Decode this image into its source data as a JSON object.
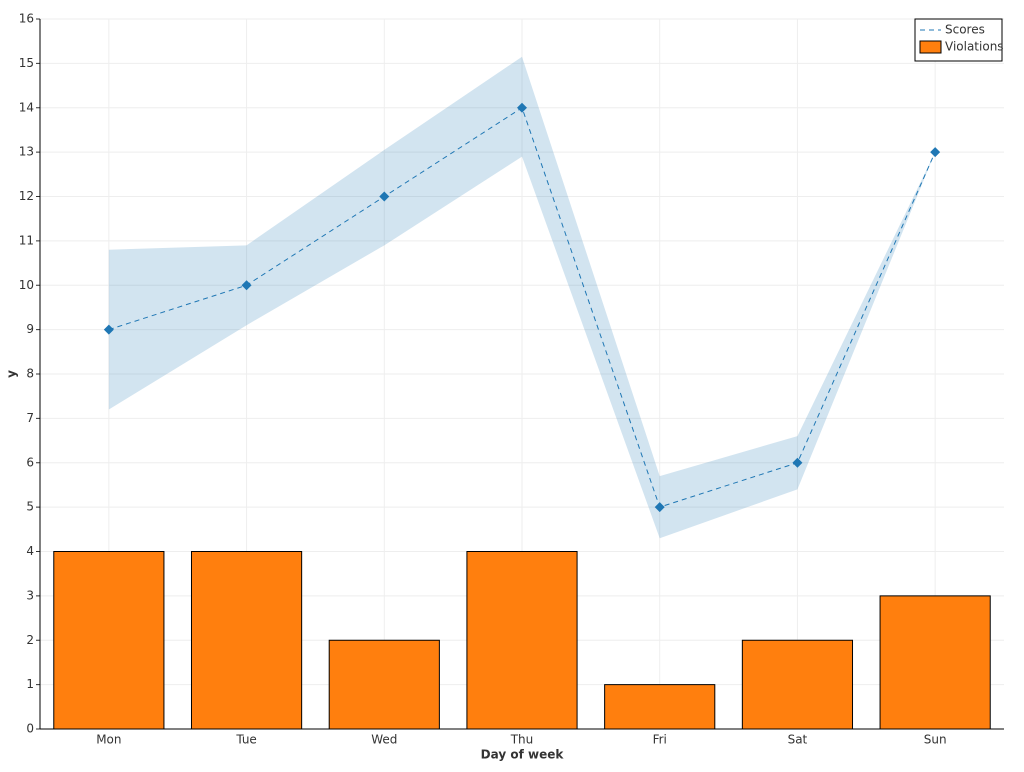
{
  "chart_data": {
    "type": "combo",
    "x_label": "Day of week",
    "y_label": "y",
    "categories": [
      "Mon",
      "Tue",
      "Wed",
      "Thu",
      "Fri",
      "Sat",
      "Sun"
    ],
    "series": [
      {
        "name": "Scores",
        "type": "line",
        "color": "#1f77b4",
        "values": [
          9,
          10,
          12,
          14,
          5,
          6,
          13
        ],
        "lower": [
          7.2,
          9.1,
          10.9,
          12.9,
          4.3,
          5.4,
          13
        ],
        "upper": [
          10.8,
          10.9,
          13.05,
          15.15,
          5.7,
          6.6,
          13
        ]
      },
      {
        "name": "Violations",
        "type": "bar",
        "color": "#ff7f0e",
        "values": [
          4,
          4,
          2,
          4,
          1,
          2,
          3
        ]
      }
    ],
    "ylim": [
      0,
      16
    ],
    "yticks": [
      0,
      1,
      2,
      3,
      4,
      5,
      6,
      7,
      8,
      9,
      10,
      11,
      12,
      13,
      14,
      15,
      16
    ],
    "grid": true,
    "legend": "upper right"
  }
}
